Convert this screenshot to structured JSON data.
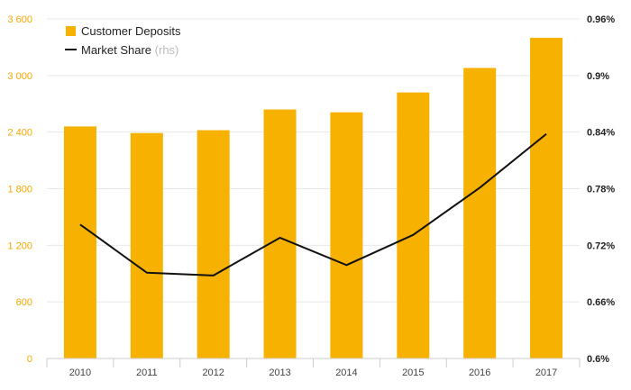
{
  "chart_data": {
    "type": "bar+line",
    "categories": [
      "2010",
      "2011",
      "2012",
      "2013",
      "2014",
      "2015",
      "2016",
      "2017"
    ],
    "series": [
      {
        "name": "Customer Deposits",
        "type": "bar",
        "axis": "left",
        "color": "#f7b100",
        "values": [
          2460,
          2390,
          2420,
          2640,
          2610,
          2820,
          3080,
          3400
        ]
      },
      {
        "name": "Market Share",
        "name_note": "(rhs)",
        "type": "line",
        "axis": "right",
        "color": "#111111",
        "values": [
          0.742,
          0.691,
          0.688,
          0.728,
          0.699,
          0.731,
          0.781,
          0.838
        ]
      }
    ],
    "left_axis": {
      "range": [
        0,
        3600
      ],
      "ticks": [
        0,
        600,
        1200,
        1800,
        2400,
        3000,
        3600
      ],
      "tick_labels": [
        "0",
        "600",
        "1 200",
        "1 800",
        "2 400",
        "3 000",
        "3 600"
      ],
      "color": "#f5a800"
    },
    "right_axis": {
      "range": [
        0.6,
        0.96
      ],
      "ticks": [
        0.6,
        0.66,
        0.72,
        0.78,
        0.84,
        0.9,
        0.96
      ],
      "tick_labels": [
        "0.6%",
        "0.66%",
        "0.72%",
        "0.78%",
        "0.84%",
        "0.9%",
        "0.96%"
      ]
    },
    "grid": true,
    "legend_position": "top-left"
  }
}
